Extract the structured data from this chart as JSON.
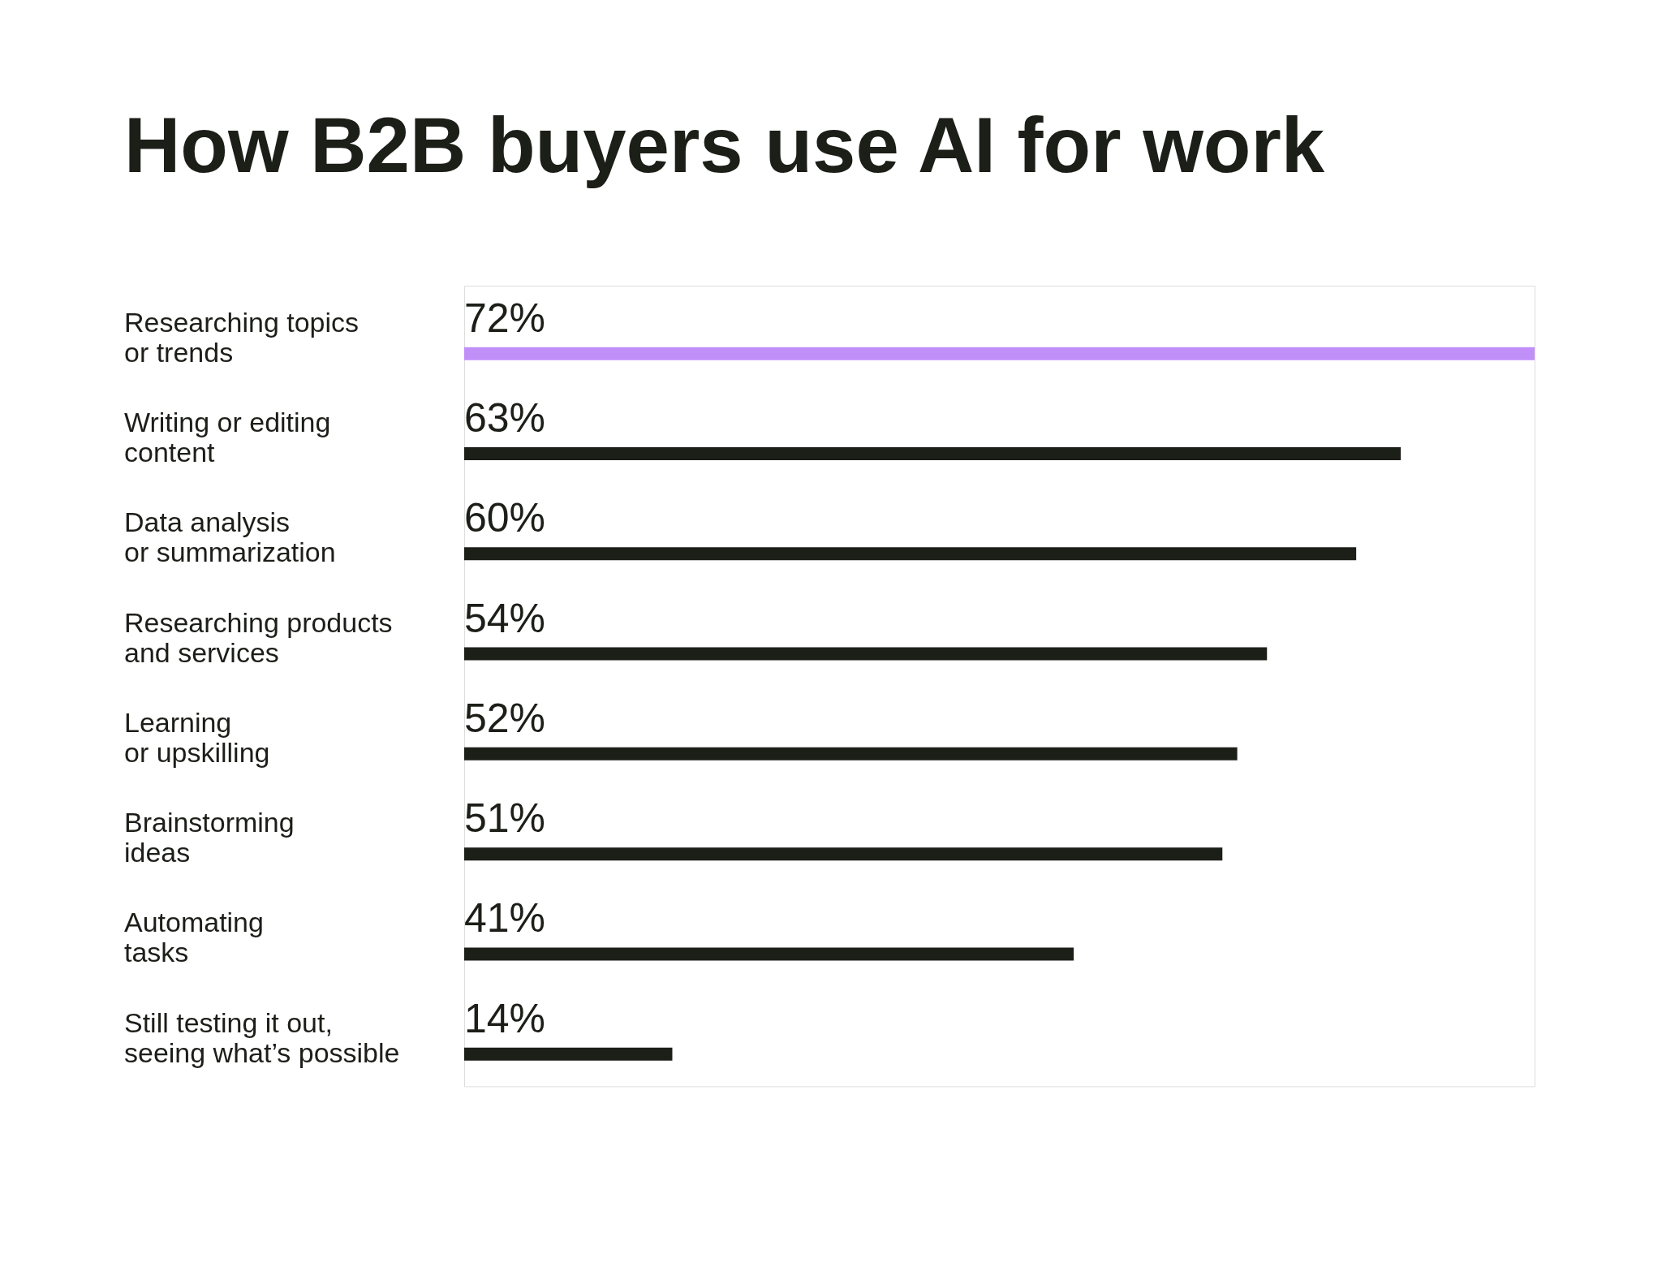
{
  "chart_data": {
    "type": "bar",
    "orientation": "horizontal",
    "title": "How B2B buyers use AI for work",
    "categories": [
      "Researching topics\nor trends",
      "Writing or editing\ncontent",
      "Data analysis\nor summarization",
      "Researching products\nand services",
      "Learning\nor upskilling",
      "Brainstorming\nideas",
      "Automating\ntasks",
      "Still testing it out,\nseeing what’s possible"
    ],
    "values": [
      72,
      63,
      60,
      54,
      52,
      51,
      41,
      14
    ],
    "value_labels": [
      "72%",
      "63%",
      "60%",
      "54%",
      "52%",
      "51%",
      "41%",
      "14%"
    ],
    "colors": [
      "#c08ff8",
      "#1c1e18",
      "#1c1e18",
      "#1c1e18",
      "#1c1e18",
      "#1c1e18",
      "#1c1e18",
      "#1c1e18"
    ],
    "tick_labels": "y"
  }
}
